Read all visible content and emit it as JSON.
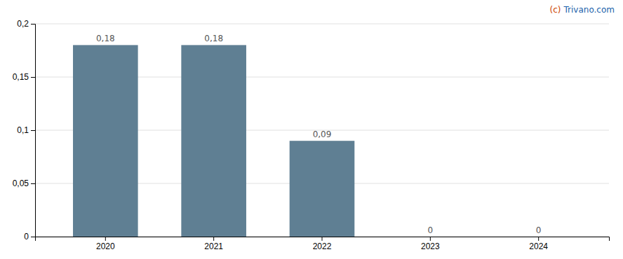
{
  "chart_data": {
    "type": "bar",
    "categories": [
      "2020",
      "2021",
      "2022",
      "2023",
      "2024"
    ],
    "values": [
      0.18,
      0.18,
      0.09,
      0.0,
      0.0
    ],
    "value_labels": [
      "0,18",
      "0,18",
      "0,09",
      "0",
      "0"
    ],
    "data_labels": true,
    "color": "#5f7f93",
    "ylim": [
      0,
      0.2
    ],
    "yticks": [
      0,
      {
        "value": 0.05,
        "label": "0,05"
      },
      {
        "value": 0.1,
        "label": "0,1"
      },
      {
        "value": 0.15,
        "label": "0,15"
      },
      {
        "value": 0.2,
        "label": "0,2"
      }
    ],
    "grid": true,
    "annotations": [
      {
        "text": "(c)",
        "color": "#cc4400"
      },
      {
        "text": "Trivano.com",
        "color": "#1a5faa"
      }
    ]
  }
}
